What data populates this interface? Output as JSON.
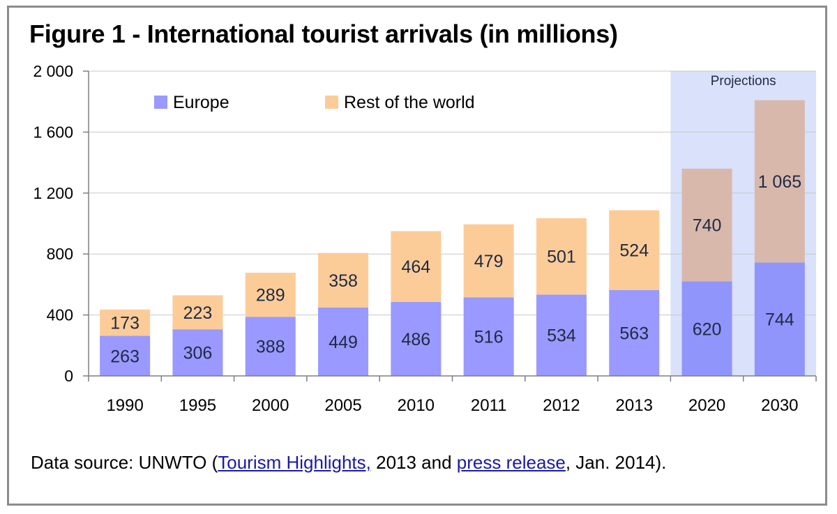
{
  "title": "Figure 1 - International tourist arrivals (in millions)",
  "source": {
    "prefix": "Data source: UNWTO (",
    "link1": "Tourism Highlights,",
    "middle": " 2013 and ",
    "link2": "press release",
    "suffix": ", Jan. 2014)."
  },
  "colors": {
    "europe": "#9999ff",
    "rest": "#fccc98",
    "europe_projection": "#8f95fb",
    "rest_projection": "#d9b8ac",
    "projection_band": "#d9e1fb",
    "grid": "#c8c8c8"
  },
  "chart_data": {
    "type": "bar",
    "stacked": true,
    "categories": [
      "1990",
      "1995",
      "2000",
      "2005",
      "2010",
      "2011",
      "2012",
      "2013",
      "2020",
      "2030"
    ],
    "series": [
      {
        "name": "Europe",
        "values": [
          263,
          306,
          388,
          449,
          486,
          516,
          534,
          563,
          620,
          744
        ]
      },
      {
        "name": "Rest of the world",
        "values": [
          173,
          223,
          289,
          358,
          464,
          479,
          501,
          524,
          740,
          1065
        ]
      }
    ],
    "ylim": [
      0,
      2000
    ],
    "yticks": [
      0,
      400,
      800,
      1200,
      1600,
      2000
    ],
    "ytick_labels": [
      "0",
      "400",
      "800",
      "1 200",
      "1 600",
      "2 000"
    ],
    "value_labels": {
      "Europe": [
        "263",
        "306",
        "388",
        "449",
        "486",
        "516",
        "534",
        "563",
        "620",
        "744"
      ],
      "Rest of the world": [
        "173",
        "223",
        "289",
        "358",
        "464",
        "479",
        "501",
        "524",
        "740",
        "1 065"
      ]
    },
    "projection_label": "Projections",
    "projection_categories": [
      "2020",
      "2030"
    ],
    "grid": true,
    "legend_position": "top-left"
  }
}
